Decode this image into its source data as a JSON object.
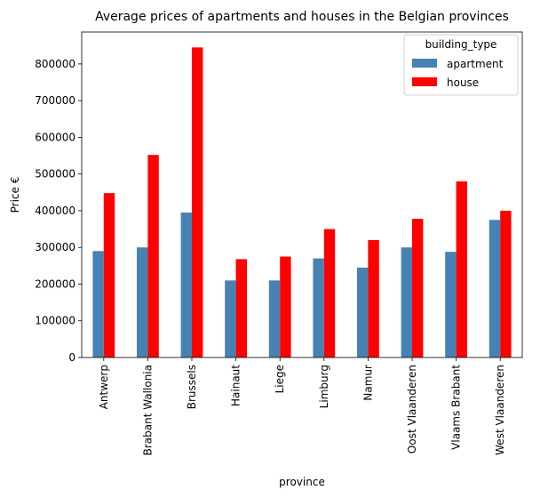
{
  "chart_data": {
    "type": "bar",
    "title": "Average prices of apartments and houses in the Belgian provinces",
    "xlabel": "province",
    "ylabel": "Price €",
    "categories": [
      "Antwerp",
      "Brabant Wallonia",
      "Brussels",
      "Hainaut",
      "Liege",
      "Limburg",
      "Namur",
      "Oost Vlaanderen",
      "Vlaams Brabant",
      "West Vlaanderen"
    ],
    "series": [
      {
        "name": "apartment",
        "color": "#4682b4",
        "values": [
          290000,
          300000,
          395000,
          210000,
          210000,
          270000,
          245000,
          300000,
          288000,
          375000
        ]
      },
      {
        "name": "house",
        "color": "#ff0000",
        "values": [
          448000,
          552000,
          845000,
          268000,
          275000,
          350000,
          320000,
          378000,
          480000,
          400000
        ]
      }
    ],
    "ylim": [
      0,
      887000
    ],
    "yticks": [
      0,
      100000,
      200000,
      300000,
      400000,
      500000,
      600000,
      700000,
      800000
    ],
    "grid": false,
    "legend": {
      "title": "building_type",
      "position": "top-right"
    }
  }
}
